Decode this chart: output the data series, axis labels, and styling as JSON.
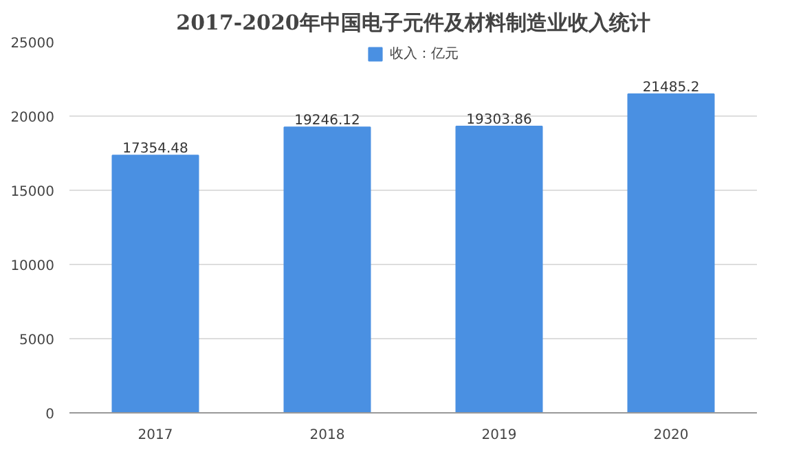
{
  "chart_data": {
    "type": "bar",
    "title": "2017-2020年中国电子元件及材料制造业收入统计",
    "categories": [
      "2017",
      "2018",
      "2019",
      "2020"
    ],
    "series": [
      {
        "name": "收入：亿元",
        "color": "#4a90e2",
        "values": [
          17354.48,
          19246.12,
          19303.86,
          21485.2
        ]
      }
    ],
    "ylim": [
      0,
      25000
    ],
    "yticks": [
      0,
      5000,
      10000,
      15000,
      20000,
      25000
    ],
    "grid": "y",
    "legend": "top",
    "data_labels": true
  }
}
